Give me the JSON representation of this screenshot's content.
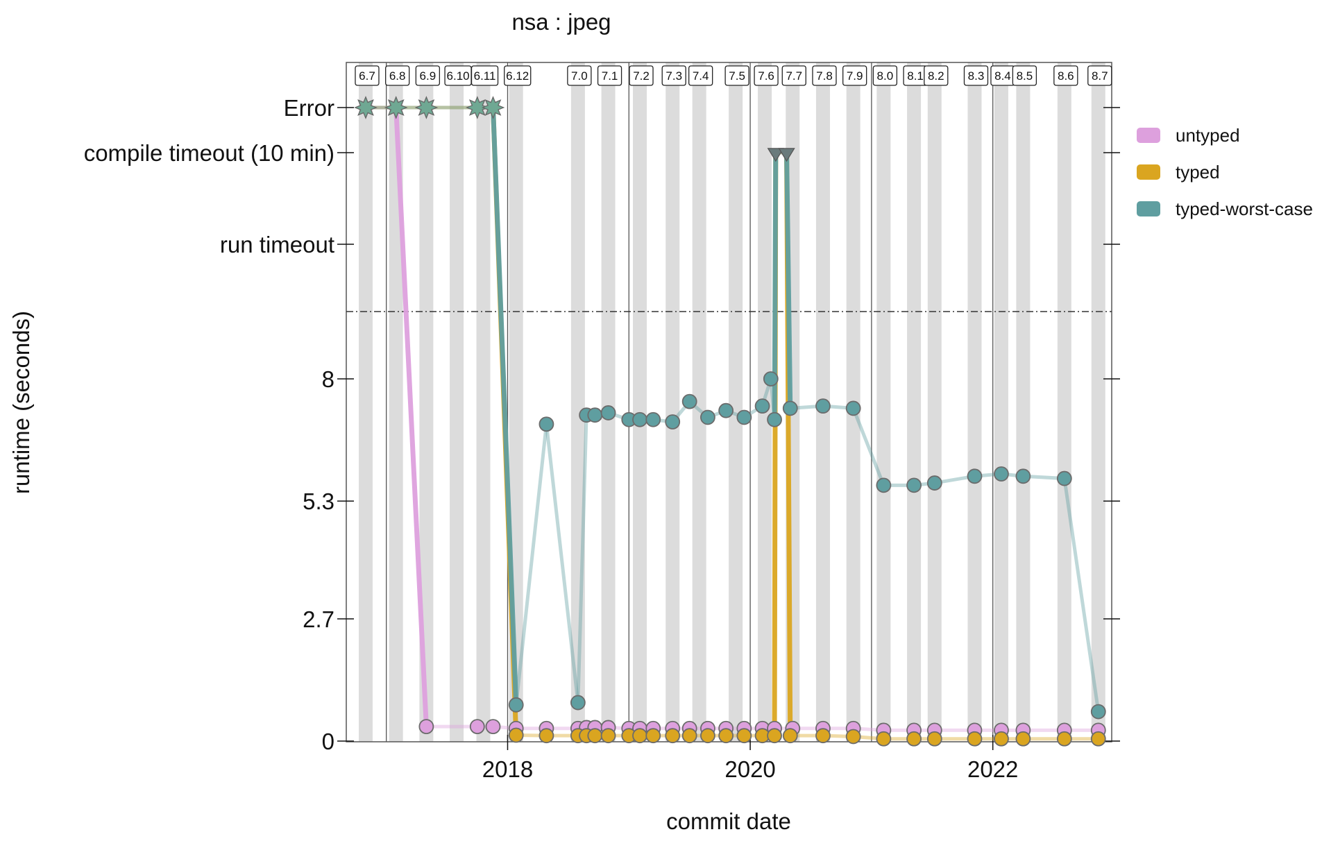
{
  "chart_data": {
    "type": "line",
    "title": "nsa : jpeg",
    "xlabel": "commit date",
    "ylabel": "runtime (seconds)",
    "xlim": [
      2016.67,
      2022.98
    ],
    "ylim": [
      0,
      8
    ],
    "x_ticks": [
      {
        "value": 2018,
        "label": "2018"
      },
      {
        "value": 2020,
        "label": "2020"
      },
      {
        "value": 2022,
        "label": "2022"
      }
    ],
    "y_ticks": [
      {
        "value": 0,
        "label": "0"
      },
      {
        "value": 2.7,
        "label": "2.7"
      },
      {
        "value": 5.3,
        "label": "5.3"
      },
      {
        "value": 8,
        "label": "8"
      }
    ],
    "special_levels": [
      {
        "key": "run_timeout",
        "label": "run timeout"
      },
      {
        "key": "compile_timeout",
        "label": "compile timeout (10 min)"
      },
      {
        "key": "error",
        "label": "Error"
      }
    ],
    "year_lines": [
      2017,
      2018,
      2019,
      2020,
      2021,
      2022
    ],
    "legend": {
      "position": "top-right"
    },
    "releases": [
      {
        "label": "6.7",
        "date": 2016.83
      },
      {
        "label": "6.8",
        "date": 2017.08
      },
      {
        "label": "6.9",
        "date": 2017.33
      },
      {
        "label": "6.10",
        "date": 2017.58
      },
      {
        "label": "6.11",
        "date": 2017.8
      },
      {
        "label": "6.12",
        "date": 2018.07
      },
      {
        "label": "7.0",
        "date": 2018.58
      },
      {
        "label": "7.1",
        "date": 2018.83
      },
      {
        "label": "7.2",
        "date": 2019.09
      },
      {
        "label": "7.3",
        "date": 2019.36
      },
      {
        "label": "7.4",
        "date": 2019.58
      },
      {
        "label": "7.5",
        "date": 2019.88
      },
      {
        "label": "7.6",
        "date": 2020.12
      },
      {
        "label": "7.7",
        "date": 2020.35
      },
      {
        "label": "7.8",
        "date": 2020.6
      },
      {
        "label": "7.9",
        "date": 2020.85
      },
      {
        "label": "8.0",
        "date": 2021.1
      },
      {
        "label": "8.1",
        "date": 2021.35
      },
      {
        "label": "8.2",
        "date": 2021.52
      },
      {
        "label": "8.3",
        "date": 2021.85
      },
      {
        "label": "8.4",
        "date": 2022.07
      },
      {
        "label": "8.5",
        "date": 2022.25
      },
      {
        "label": "8.6",
        "date": 2022.59
      },
      {
        "label": "8.7",
        "date": 2022.87
      }
    ],
    "series": [
      {
        "name": "untyped",
        "color": "#dda0dd",
        "points": [
          {
            "x": 2016.83,
            "y": "Error"
          },
          {
            "x": 2017.08,
            "y": "Error"
          },
          {
            "x": 2017.33,
            "y": 0.32
          },
          {
            "x": 2017.75,
            "y": 0.32
          },
          {
            "x": 2017.88,
            "y": 0.32
          },
          {
            "x": 2018.07,
            "y": 0.28
          },
          {
            "x": 2018.32,
            "y": 0.28
          },
          {
            "x": 2018.58,
            "y": 0.28
          },
          {
            "x": 2018.65,
            "y": 0.3
          },
          {
            "x": 2018.72,
            "y": 0.3
          },
          {
            "x": 2018.83,
            "y": 0.3
          },
          {
            "x": 2019.0,
            "y": 0.28
          },
          {
            "x": 2019.09,
            "y": 0.28
          },
          {
            "x": 2019.2,
            "y": 0.28
          },
          {
            "x": 2019.36,
            "y": 0.28
          },
          {
            "x": 2019.5,
            "y": 0.28
          },
          {
            "x": 2019.65,
            "y": 0.28
          },
          {
            "x": 2019.8,
            "y": 0.28
          },
          {
            "x": 2019.95,
            "y": 0.28
          },
          {
            "x": 2020.1,
            "y": 0.28
          },
          {
            "x": 2020.2,
            "y": 0.28
          },
          {
            "x": 2020.35,
            "y": 0.28
          },
          {
            "x": 2020.6,
            "y": 0.28
          },
          {
            "x": 2020.85,
            "y": 0.28
          },
          {
            "x": 2021.1,
            "y": 0.24
          },
          {
            "x": 2021.35,
            "y": 0.24
          },
          {
            "x": 2021.52,
            "y": 0.24
          },
          {
            "x": 2021.85,
            "y": 0.24
          },
          {
            "x": 2022.07,
            "y": 0.24
          },
          {
            "x": 2022.25,
            "y": 0.24
          },
          {
            "x": 2022.59,
            "y": 0.24
          },
          {
            "x": 2022.87,
            "y": 0.24
          }
        ]
      },
      {
        "name": "typed",
        "color": "#daa520",
        "points": [
          {
            "x": 2016.83,
            "y": "Error"
          },
          {
            "x": 2017.08,
            "y": "Error"
          },
          {
            "x": 2017.33,
            "y": "Error"
          },
          {
            "x": 2017.75,
            "y": "Error"
          },
          {
            "x": 2017.88,
            "y": "Error"
          },
          {
            "x": 2018.07,
            "y": 0.13
          },
          {
            "x": 2018.32,
            "y": 0.12
          },
          {
            "x": 2018.58,
            "y": 0.12
          },
          {
            "x": 2018.65,
            "y": 0.12
          },
          {
            "x": 2018.72,
            "y": 0.12
          },
          {
            "x": 2018.83,
            "y": 0.12
          },
          {
            "x": 2019.0,
            "y": 0.12
          },
          {
            "x": 2019.09,
            "y": 0.12
          },
          {
            "x": 2019.2,
            "y": 0.12
          },
          {
            "x": 2019.36,
            "y": 0.12
          },
          {
            "x": 2019.5,
            "y": 0.12
          },
          {
            "x": 2019.65,
            "y": 0.12
          },
          {
            "x": 2019.8,
            "y": 0.12
          },
          {
            "x": 2019.95,
            "y": 0.12
          },
          {
            "x": 2020.1,
            "y": 0.12
          },
          {
            "x": 2020.2,
            "y": 0.12
          },
          {
            "x": 2020.21,
            "y": "compile timeout"
          },
          {
            "x": 2020.3,
            "y": "compile timeout"
          },
          {
            "x": 2020.33,
            "y": 0.12
          },
          {
            "x": 2020.6,
            "y": 0.12
          },
          {
            "x": 2020.85,
            "y": 0.1
          },
          {
            "x": 2021.1,
            "y": 0.05
          },
          {
            "x": 2021.35,
            "y": 0.05
          },
          {
            "x": 2021.52,
            "y": 0.05
          },
          {
            "x": 2021.85,
            "y": 0.05
          },
          {
            "x": 2022.07,
            "y": 0.05
          },
          {
            "x": 2022.25,
            "y": 0.05
          },
          {
            "x": 2022.59,
            "y": 0.05
          },
          {
            "x": 2022.87,
            "y": 0.05
          }
        ]
      },
      {
        "name": "typed-worst-case",
        "color": "#5f9ea0",
        "points": [
          {
            "x": 2016.83,
            "y": "Error"
          },
          {
            "x": 2017.08,
            "y": "Error"
          },
          {
            "x": 2017.33,
            "y": "Error"
          },
          {
            "x": 2017.75,
            "y": "Error"
          },
          {
            "x": 2017.88,
            "y": "Error"
          },
          {
            "x": 2018.07,
            "y": 0.8
          },
          {
            "x": 2018.32,
            "y": 7.0
          },
          {
            "x": 2018.58,
            "y": 0.85
          },
          {
            "x": 2018.65,
            "y": 7.2
          },
          {
            "x": 2018.72,
            "y": 7.2
          },
          {
            "x": 2018.83,
            "y": 7.25
          },
          {
            "x": 2019.0,
            "y": 7.1
          },
          {
            "x": 2019.09,
            "y": 7.1
          },
          {
            "x": 2019.2,
            "y": 7.1
          },
          {
            "x": 2019.36,
            "y": 7.05
          },
          {
            "x": 2019.5,
            "y": 7.5
          },
          {
            "x": 2019.65,
            "y": 7.15
          },
          {
            "x": 2019.8,
            "y": 7.3
          },
          {
            "x": 2019.95,
            "y": 7.15
          },
          {
            "x": 2020.1,
            "y": 7.4
          },
          {
            "x": 2020.17,
            "y": 8.0
          },
          {
            "x": 2020.2,
            "y": 7.1
          },
          {
            "x": 2020.21,
            "y": "compile timeout"
          },
          {
            "x": 2020.3,
            "y": "compile timeout"
          },
          {
            "x": 2020.33,
            "y": 7.35
          },
          {
            "x": 2020.6,
            "y": 7.4
          },
          {
            "x": 2020.85,
            "y": 7.35
          },
          {
            "x": 2021.1,
            "y": 5.65
          },
          {
            "x": 2021.35,
            "y": 5.65
          },
          {
            "x": 2021.52,
            "y": 5.7
          },
          {
            "x": 2021.85,
            "y": 5.85
          },
          {
            "x": 2022.07,
            "y": 5.9
          },
          {
            "x": 2022.25,
            "y": 5.85
          },
          {
            "x": 2022.59,
            "y": 5.8
          },
          {
            "x": 2022.87,
            "y": 0.65
          }
        ]
      }
    ]
  }
}
